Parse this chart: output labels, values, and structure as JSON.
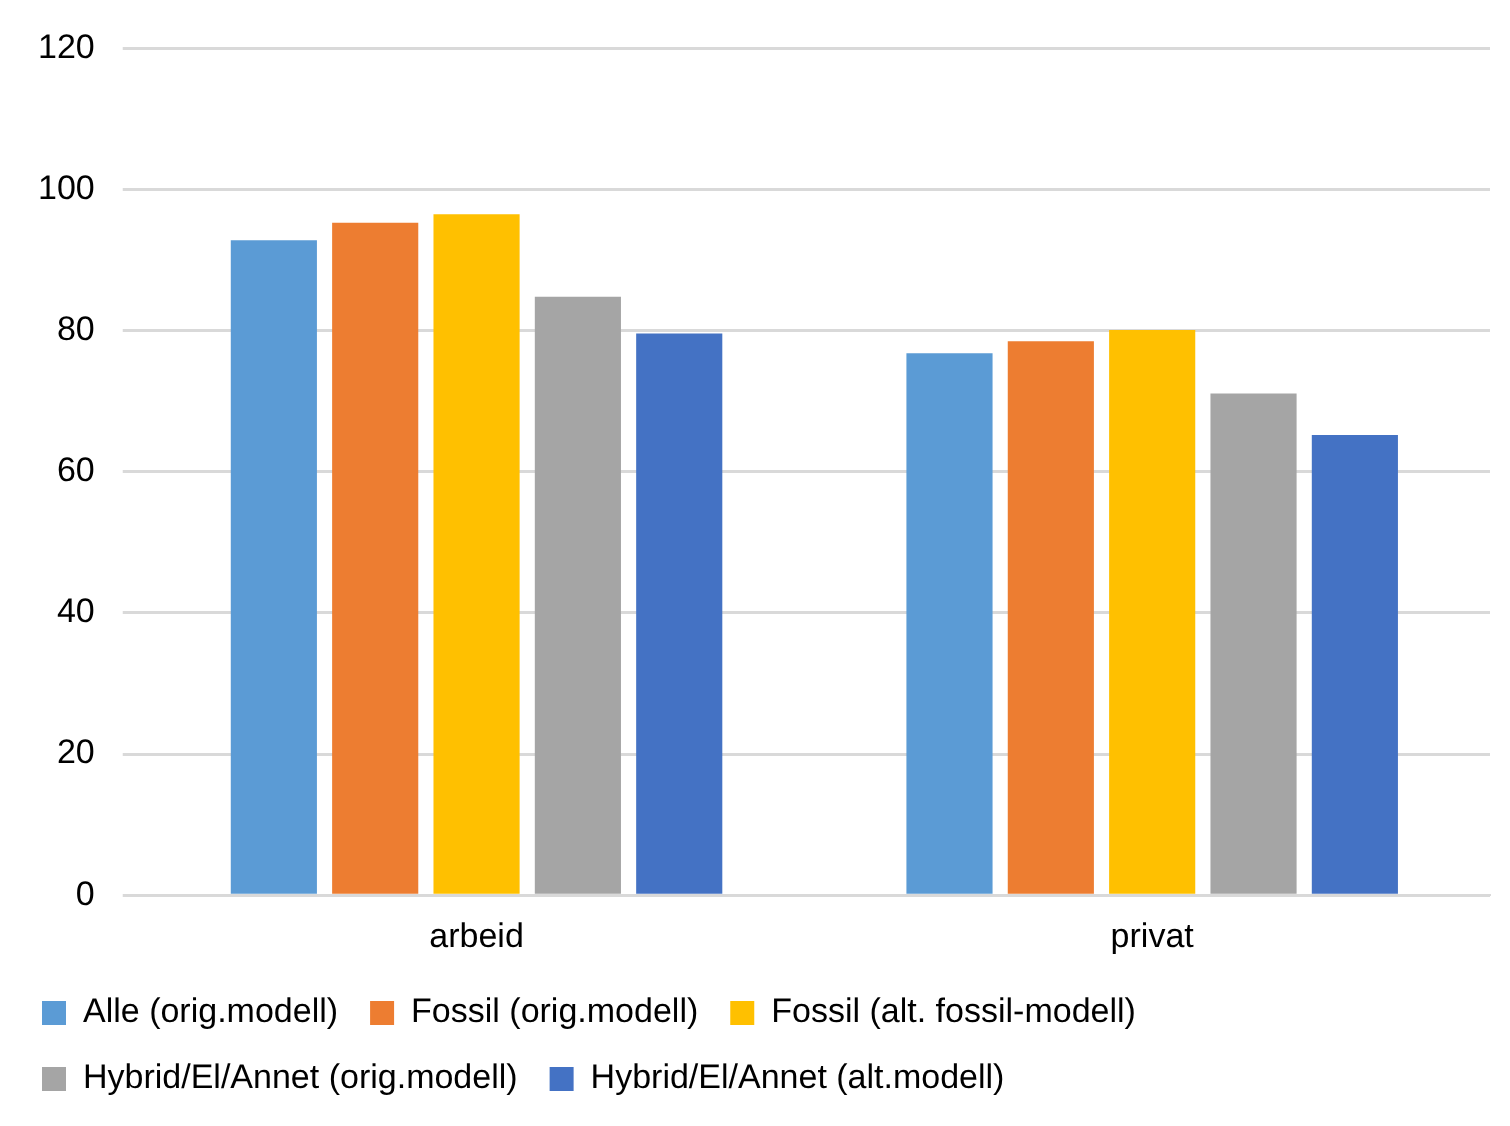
{
  "chart_data": {
    "type": "bar",
    "categories": [
      "arbeid",
      "privat"
    ],
    "series": [
      {
        "name": "Alle (orig.modell)",
        "color": "#5b9bd5",
        "values": [
          92.8,
          76.8
        ]
      },
      {
        "name": "Fossil (orig.modell)",
        "color": "#ed7d31",
        "values": [
          95.3,
          78.5
        ]
      },
      {
        "name": "Fossil (alt. fossil-modell)",
        "color": "#ffc000",
        "values": [
          96.5,
          80.1
        ]
      },
      {
        "name": "Hybrid/El/Annet (orig.modell)",
        "color": "#a5a5a5",
        "values": [
          84.8,
          71.1
        ]
      },
      {
        "name": "Hybrid/El/Annet (alt.modell)",
        "color": "#4472c4",
        "values": [
          79.6,
          65.2
        ]
      }
    ],
    "ylim": [
      0,
      120
    ],
    "yticks": [
      0,
      20,
      40,
      60,
      80,
      100,
      120
    ],
    "grid": "y",
    "legend": "bottom"
  }
}
